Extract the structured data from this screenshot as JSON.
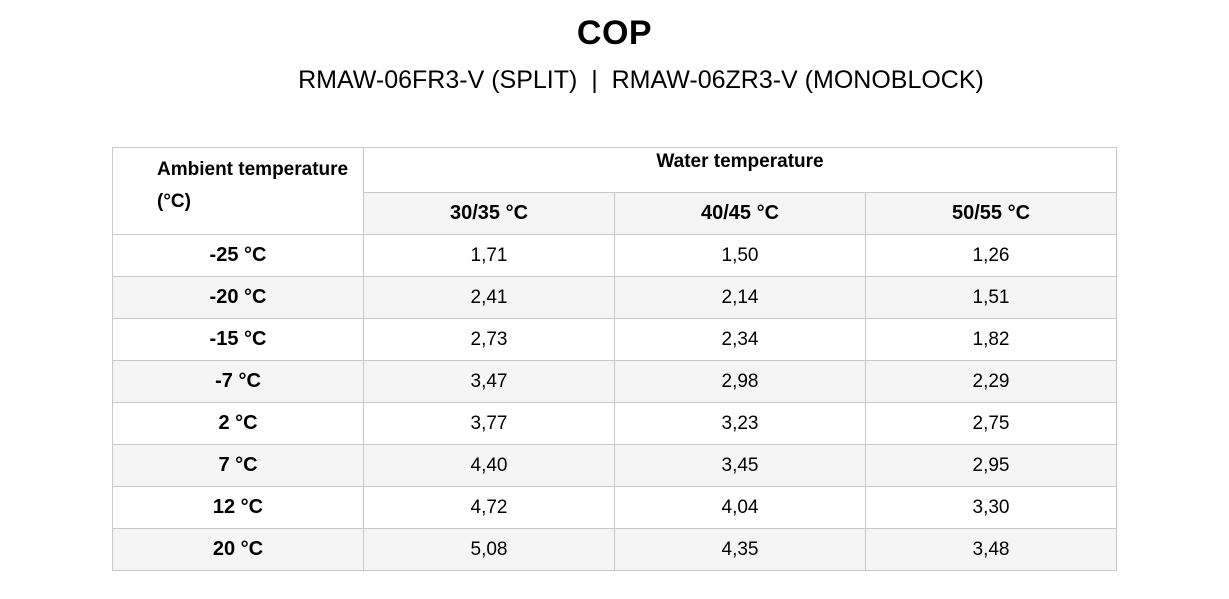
{
  "title": "COP",
  "subtitle": "RMAW-06FR3-V (SPLIT)  |  RMAW-06ZR3-V (MONOBLOCK)",
  "table": {
    "ambient_header": "Ambient temperature (°C)",
    "water_header": "Water temperature",
    "columns": [
      "30/35 °C",
      "40/45 °C",
      "50/55 °C"
    ],
    "rows": [
      {
        "ambient": "-25 °C",
        "values": [
          "1,71",
          "1,50",
          "1,26"
        ]
      },
      {
        "ambient": "-20 °C",
        "values": [
          "2,41",
          "2,14",
          "1,51"
        ]
      },
      {
        "ambient": "-15 °C",
        "values": [
          "2,73",
          "2,34",
          "1,82"
        ]
      },
      {
        "ambient": "-7 °C",
        "values": [
          "3,47",
          "2,98",
          "2,29"
        ]
      },
      {
        "ambient": "2 °C",
        "values": [
          "3,77",
          "3,23",
          "2,75"
        ]
      },
      {
        "ambient": "7 °C",
        "values": [
          "4,40",
          "3,45",
          "2,95"
        ]
      },
      {
        "ambient": "12 °C",
        "values": [
          "4,72",
          "4,04",
          "3,30"
        ]
      },
      {
        "ambient": "20 °C",
        "values": [
          "5,08",
          "4,35",
          "3,48"
        ]
      }
    ]
  }
}
